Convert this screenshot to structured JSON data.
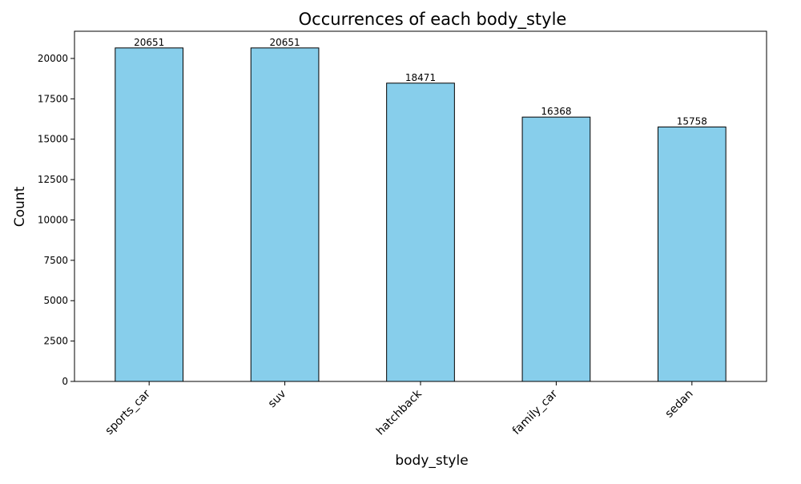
{
  "chart_data": {
    "type": "bar",
    "title": "Occurrences of each body_style",
    "xlabel": "body_style",
    "ylabel": "Count",
    "categories": [
      "sports_car",
      "suv",
      "hatchback",
      "family_car",
      "sedan"
    ],
    "values": [
      20651,
      20651,
      18471,
      16368,
      15758
    ],
    "value_labels": [
      "20651",
      "20651",
      "18471",
      "16368",
      "15758"
    ],
    "ylim": [
      0,
      21684
    ],
    "yticks": [
      0,
      2500,
      5000,
      7500,
      10000,
      12500,
      15000,
      17500,
      20000
    ],
    "ytick_labels": [
      "0",
      "2500",
      "5000",
      "7500",
      "10000",
      "12500",
      "15000",
      "17500",
      "20000"
    ],
    "grid": false,
    "bar_color": "#87ceeb",
    "bar_edge_color": "#000000",
    "xtick_rotation": "45 degrees, right-aligned"
  }
}
